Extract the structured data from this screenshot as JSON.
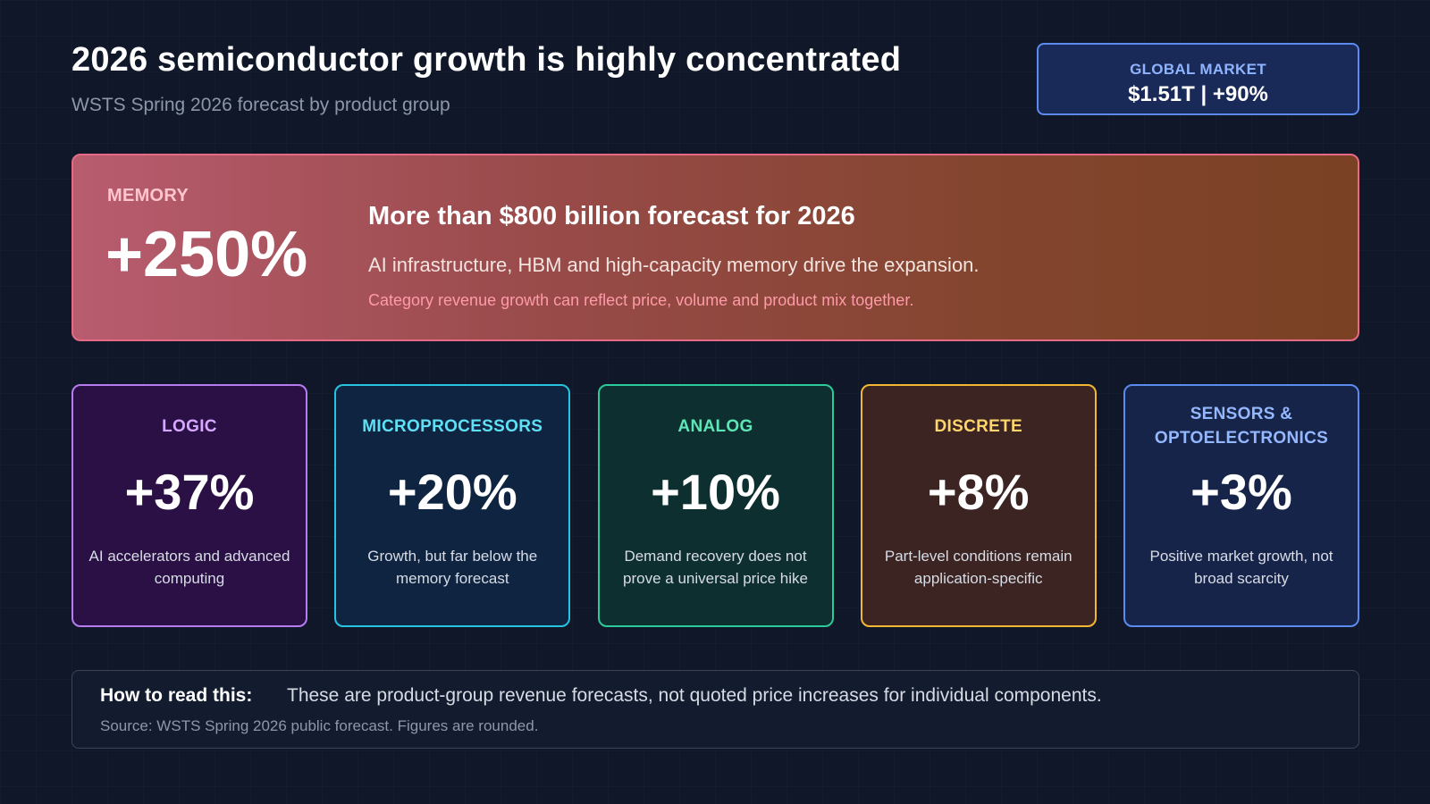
{
  "header": {
    "title": "2026 semiconductor growth is highly concentrated",
    "subtitle": "WSTS Spring 2026 forecast by product group"
  },
  "global_market": {
    "label": "GLOBAL MARKET",
    "value": "$1.51T | +90%"
  },
  "memory": {
    "category": "MEMORY",
    "growth": "+250%",
    "headline": "More than $800 billion forecast for 2026",
    "description": "AI infrastructure, HBM and high-capacity memory drive the expansion.",
    "note": "Category revenue growth can reflect price, volume and product mix together.",
    "accent": "#e66a86"
  },
  "cards": [
    {
      "category": "LOGIC",
      "growth": "+37%",
      "description": "AI accelerators and advanced computing",
      "accent": "#b67df0"
    },
    {
      "category": "MICROPROCESSORS",
      "growth": "+20%",
      "description": "Growth, but far below the memory forecast",
      "accent": "#27c4e0"
    },
    {
      "category": "ANALOG",
      "growth": "+10%",
      "description": "Demand recovery does not prove a universal price hike",
      "accent": "#2cc99a"
    },
    {
      "category": "DISCRETE",
      "growth": "+8%",
      "description": "Part-level conditions remain application-specific",
      "accent": "#f2b833"
    },
    {
      "category": "SENSORS & OPTOELECTRONICS",
      "growth": "+3%",
      "description": "Positive market growth, not broad scarcity",
      "accent": "#5b8bef"
    }
  ],
  "footer": {
    "label": "How to read this:",
    "text": "These are product-group revenue forecasts, not quoted price increases for individual components.",
    "source": "Source: WSTS Spring 2026 public forecast. Figures are rounded."
  }
}
